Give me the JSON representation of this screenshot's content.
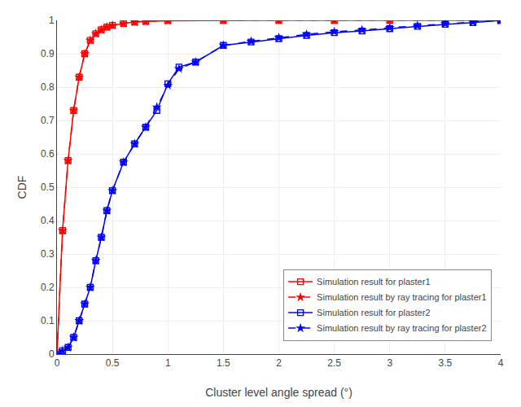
{
  "chart_data": {
    "type": "line",
    "xlabel": "Cluster level angle spread (°)",
    "ylabel": "CDF",
    "xlim": [
      0,
      4
    ],
    "ylim": [
      0,
      1
    ],
    "xticks": [
      0,
      0.5,
      1,
      1.5,
      2,
      2.5,
      3,
      3.5,
      4
    ],
    "yticks": [
      0,
      0.1,
      0.2,
      0.3,
      0.4,
      0.5,
      0.6,
      0.7,
      0.8,
      0.9,
      1
    ],
    "grid": true,
    "legend": "lower right",
    "series": [
      {
        "name": "Simulation result for plaster1",
        "color": "#FF0000",
        "marker": "square",
        "line_style": "solid",
        "x": [
          0.0,
          0.05,
          0.1,
          0.15,
          0.2,
          0.25,
          0.3,
          0.35,
          0.4,
          0.45,
          0.5,
          0.6,
          0.7,
          0.8,
          1.0,
          1.5,
          2.0,
          2.5,
          3.0,
          3.5,
          4.0
        ],
        "values": [
          0.0,
          0.37,
          0.58,
          0.73,
          0.83,
          0.9,
          0.94,
          0.96,
          0.972,
          0.98,
          0.985,
          0.991,
          0.995,
          0.997,
          0.999,
          1.0,
          1.0,
          1.0,
          1.0,
          1.0,
          1.0
        ]
      },
      {
        "name": "Simulation result by ray tracing for plaster1",
        "color": "#FF0000",
        "marker": "star",
        "line_style": "dashed",
        "x": [
          0.0,
          0.05,
          0.1,
          0.15,
          0.2,
          0.25,
          0.3,
          0.35,
          0.4,
          0.45,
          0.5,
          0.6,
          0.7,
          0.8,
          1.0,
          1.5,
          2.0,
          2.5,
          3.0,
          3.5,
          4.0
        ],
        "values": [
          0.0,
          0.37,
          0.58,
          0.73,
          0.83,
          0.9,
          0.94,
          0.96,
          0.972,
          0.98,
          0.985,
          0.991,
          0.995,
          0.997,
          0.999,
          1.0,
          1.0,
          1.0,
          1.0,
          1.0,
          1.0
        ]
      },
      {
        "name": "Simulation result for plaster2",
        "color": "#0000FF",
        "marker": "square",
        "line_style": "solid",
        "x": [
          0.0,
          0.05,
          0.1,
          0.15,
          0.2,
          0.25,
          0.3,
          0.35,
          0.4,
          0.45,
          0.5,
          0.6,
          0.7,
          0.8,
          0.9,
          1.0,
          1.1,
          1.25,
          1.5,
          1.75,
          2.0,
          2.25,
          2.5,
          2.75,
          3.0,
          3.25,
          3.5,
          3.75,
          4.0
        ],
        "values": [
          0.0,
          0.01,
          0.02,
          0.05,
          0.1,
          0.15,
          0.2,
          0.28,
          0.35,
          0.43,
          0.49,
          0.575,
          0.63,
          0.68,
          0.73,
          0.81,
          0.86,
          0.875,
          0.925,
          0.935,
          0.945,
          0.955,
          0.963,
          0.968,
          0.975,
          0.982,
          0.988,
          0.993,
          1.0
        ]
      },
      {
        "name": "Simulation result by ray tracing for plaster2",
        "color": "#0000FF",
        "marker": "star",
        "line_style": "dashed",
        "x": [
          0.0,
          0.05,
          0.1,
          0.15,
          0.2,
          0.25,
          0.3,
          0.35,
          0.4,
          0.45,
          0.5,
          0.6,
          0.7,
          0.8,
          0.9,
          1.0,
          1.1,
          1.25,
          1.5,
          1.75,
          2.0,
          2.25,
          2.5,
          2.75,
          3.0,
          3.25,
          3.5,
          3.75,
          4.0
        ],
        "values": [
          0.0,
          0.01,
          0.02,
          0.05,
          0.1,
          0.15,
          0.2,
          0.28,
          0.35,
          0.43,
          0.49,
          0.575,
          0.63,
          0.68,
          0.74,
          0.805,
          0.855,
          0.875,
          0.925,
          0.937,
          0.948,
          0.958,
          0.966,
          0.971,
          0.978,
          0.984,
          0.99,
          0.995,
          1.0
        ]
      }
    ]
  }
}
